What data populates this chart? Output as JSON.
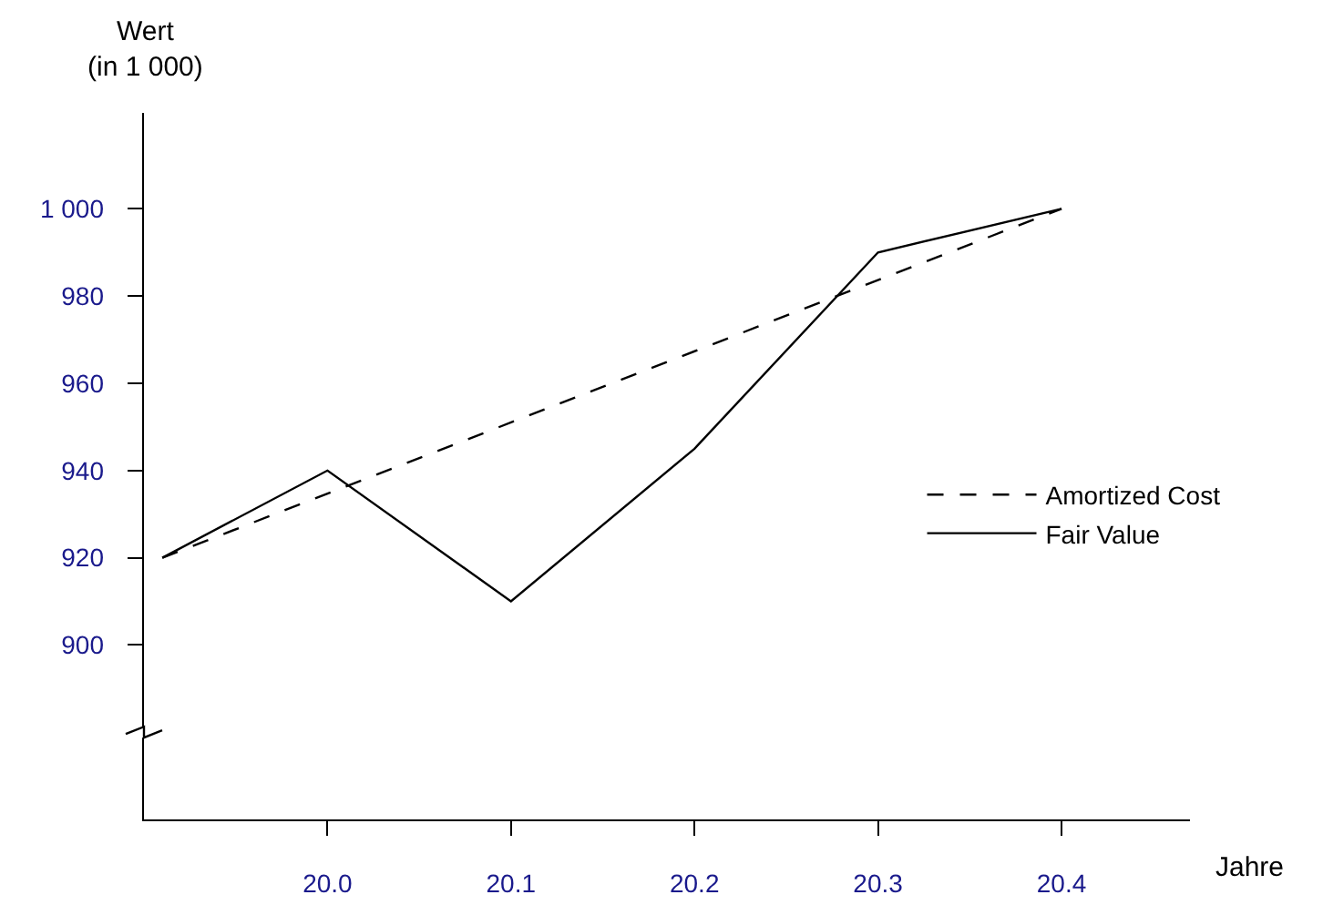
{
  "chart_data": {
    "type": "line",
    "xlabel": "Jahre",
    "ylabel": "Wert\n(in 1 000)",
    "series": [
      {
        "name": "Amortized Cost",
        "color": "#000000",
        "line_style": "dashed",
        "x": [
          19.91,
          20.4
        ],
        "values": [
          920,
          1000
        ]
      },
      {
        "name": "Fair Value",
        "color": "#000000",
        "line_style": "solid",
        "x": [
          19.91,
          20.0,
          20.1,
          20.2,
          20.3,
          20.4
        ],
        "values": [
          920,
          940,
          910,
          945,
          990,
          1000
        ]
      }
    ],
    "xlim": [
      19.9,
      20.47
    ],
    "ylim": [
      860,
      1022
    ],
    "xticks": [
      {
        "value": 20,
        "label": "20.0"
      },
      20.1,
      20.2,
      20.3,
      20.4
    ],
    "yticks": [
      900,
      920,
      940,
      960,
      980,
      {
        "value": 1000,
        "label": "1 000"
      }
    ],
    "grid": false,
    "legend": "right",
    "marker": "none"
  }
}
